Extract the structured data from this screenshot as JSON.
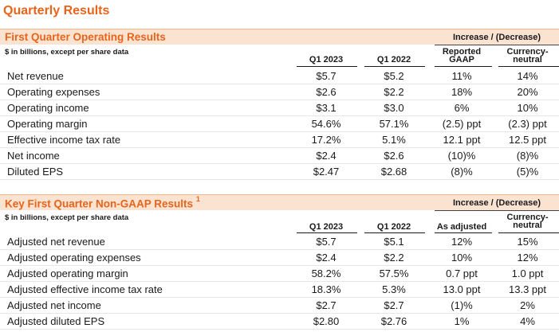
{
  "page_title": "Quarterly Results",
  "sections": [
    {
      "title": "First Quarter Operating Results",
      "footnote": "",
      "units_note": "$ in billions, except per share data",
      "increase_header": "Increase / (Decrease)",
      "col_headers": [
        "Q1 2023",
        "Q1 2022",
        "Reported GAAP",
        "Currency-neutral"
      ],
      "col_header_lines": [
        [
          "Q1 2023"
        ],
        [
          "Q1 2022"
        ],
        [
          "Reported",
          "GAAP"
        ],
        [
          "Currency-",
          "neutral"
        ]
      ],
      "rows": [
        {
          "label": "Net revenue",
          "values": [
            "$5.7",
            "$5.2",
            "11%",
            "14%"
          ]
        },
        {
          "label": "Operating expenses",
          "values": [
            "$2.6",
            "$2.2",
            "18%",
            "20%"
          ]
        },
        {
          "label": "Operating income",
          "values": [
            "$3.1",
            "$3.0",
            "6%",
            "10%"
          ]
        },
        {
          "label": "Operating margin",
          "values": [
            "54.6%",
            "57.1%",
            "(2.5) ppt",
            "(2.3) ppt"
          ]
        },
        {
          "label": "Effective income tax rate",
          "values": [
            "17.2%",
            "5.1%",
            "12.1 ppt",
            "12.5 ppt"
          ]
        },
        {
          "label": "Net income",
          "values": [
            "$2.4",
            "$2.6",
            "(10)%",
            "(8)%"
          ]
        },
        {
          "label": "Diluted EPS",
          "values": [
            "$2.47",
            "$2.68",
            "(8)%",
            "(5)%"
          ]
        }
      ]
    },
    {
      "title": "Key First Quarter Non-GAAP Results",
      "footnote": "1",
      "units_note": "$ in billions, except per share data",
      "increase_header": "Increase / (Decrease)",
      "col_headers": [
        "Q1 2023",
        "Q1 2022",
        "As adjusted",
        "Currency-neutral"
      ],
      "col_header_lines": [
        [
          "Q1 2023"
        ],
        [
          "Q1 2022"
        ],
        [
          "As adjusted"
        ],
        [
          "Currency-",
          "neutral"
        ]
      ],
      "rows": [
        {
          "label": "Adjusted net revenue",
          "values": [
            "$5.7",
            "$5.1",
            "12%",
            "15%"
          ]
        },
        {
          "label": "Adjusted operating expenses",
          "values": [
            "$2.4",
            "$2.2",
            "10%",
            "12%"
          ]
        },
        {
          "label": "Adjusted operating margin",
          "values": [
            "58.2%",
            "57.5%",
            "0.7 ppt",
            "1.0 ppt"
          ]
        },
        {
          "label": "Adjusted effective income tax rate",
          "values": [
            "18.3%",
            "5.3%",
            "13.0 ppt",
            "13.3 ppt"
          ]
        },
        {
          "label": "Adjusted net income",
          "values": [
            "$2.7",
            "$2.7",
            "(1)%",
            "2%"
          ]
        },
        {
          "label": "Adjusted diluted EPS",
          "values": [
            "$2.80",
            "$2.76",
            "1%",
            "4%"
          ]
        }
      ]
    }
  ]
}
